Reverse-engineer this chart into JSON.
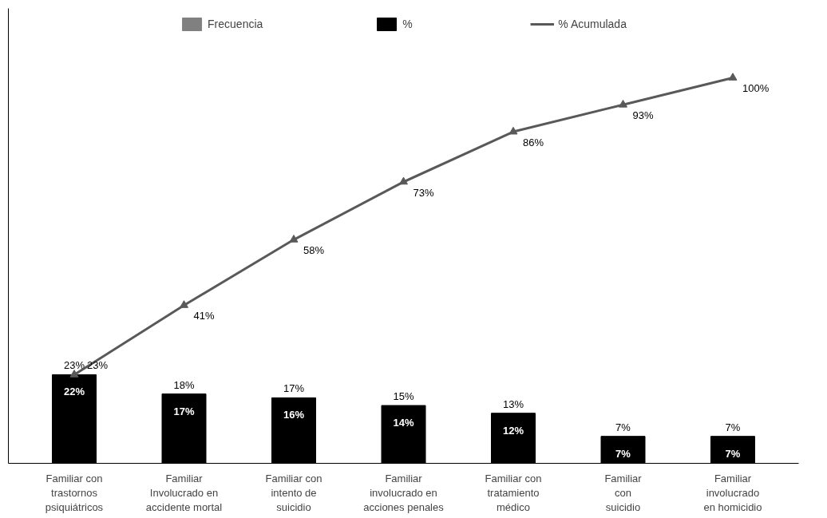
{
  "chart_data": {
    "type": "bar",
    "categories": [
      "Familiar con\ntrastornos\npsiquiátricos",
      "Familiar\nInvolucrado en\naccidente mortal",
      "Familiar con\nintento de\nsuicidio",
      "Familiar\ninvolucrado en\nacciones penales",
      "Familiar con\ntratamiento\nmédico",
      "Familiar\ncon\nsuicidio",
      "Familiar\ninvolucrado\nen homicidio"
    ],
    "series": [
      {
        "name": "Frecuencia",
        "color": "#808080",
        "values": [
          null,
          null,
          null,
          null,
          null,
          null,
          null
        ]
      },
      {
        "name": "%",
        "color": "#000000",
        "values": [
          23,
          18,
          17,
          15,
          13,
          7,
          7
        ],
        "value_labels": [
          "23%",
          "18%",
          "17%",
          "15%",
          "13%",
          "7%",
          "7%"
        ]
      },
      {
        "name": "% Acumulada",
        "color": "#595959",
        "type": "line",
        "marker": "triangle",
        "values": [
          23,
          41,
          58,
          73,
          86,
          93,
          100
        ],
        "value_labels": [
          "23%",
          "41%",
          "58%",
          "73%",
          "86%",
          "93%",
          "100%"
        ]
      }
    ],
    "annotations": [
      "22%",
      "17%",
      "16%",
      "14%",
      "12%",
      "7%",
      "7%"
    ],
    "ylim": [
      0,
      118
    ],
    "tick_labels": "x",
    "grid": false,
    "legend": "top"
  }
}
